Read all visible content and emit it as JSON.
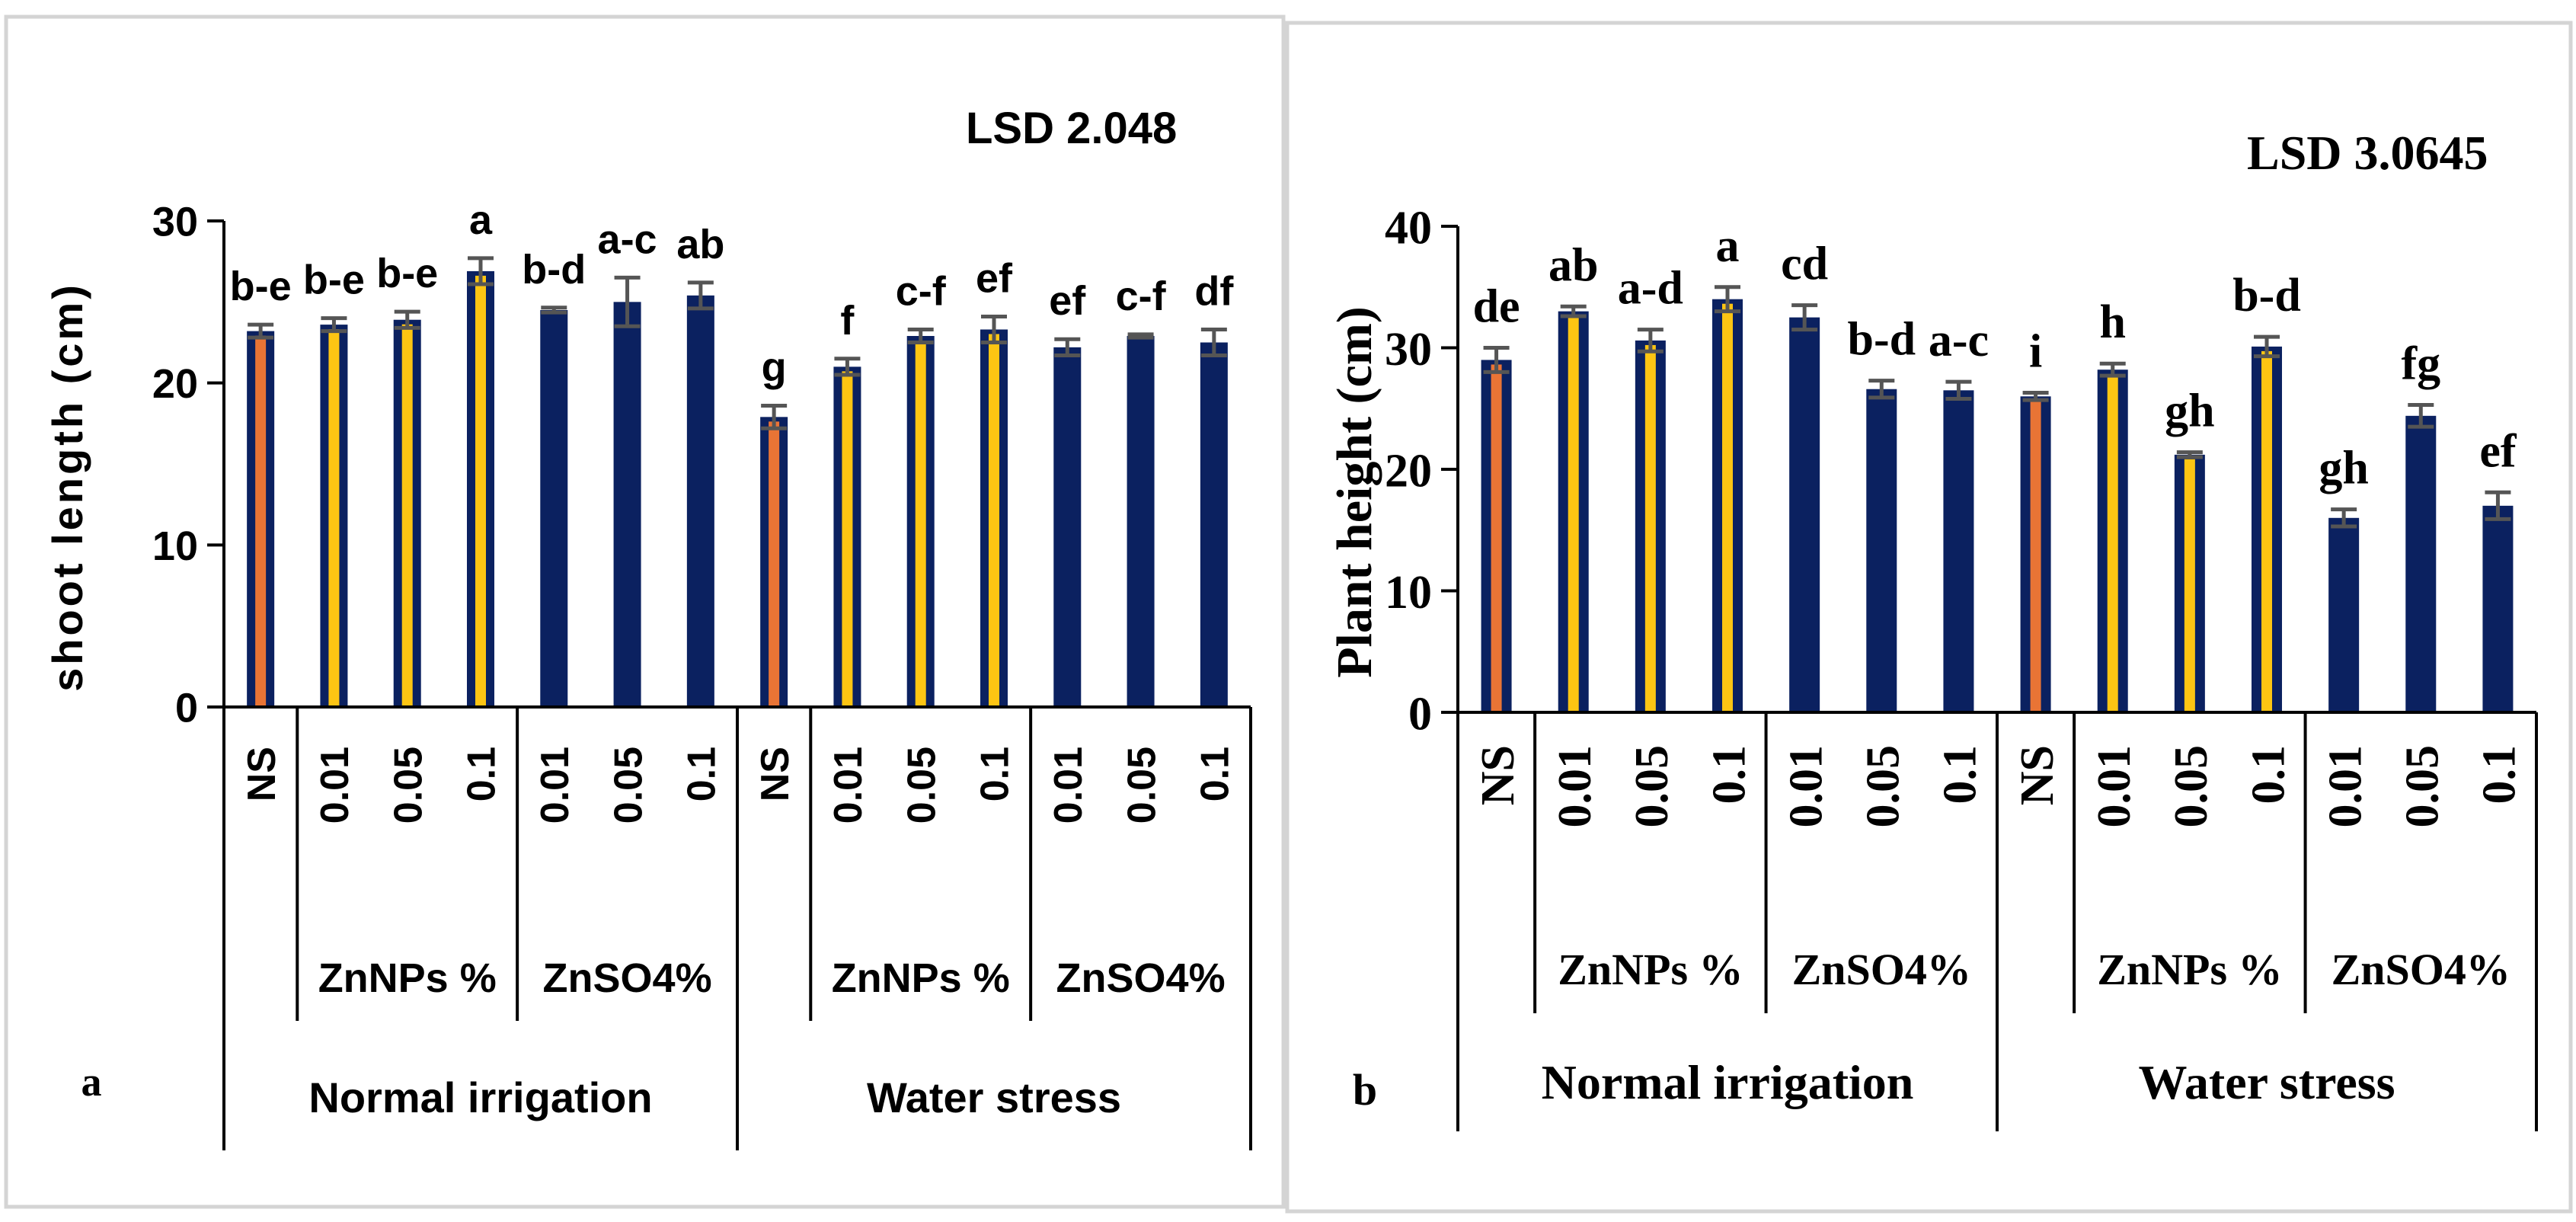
{
  "colors": {
    "navy": "#0b2160",
    "orange": "#e97435",
    "yellow": "#fdc513",
    "error_bar": "#555555",
    "frame": "#d4d4d4",
    "axis": "#000000"
  },
  "chart_data": [
    {
      "type": "bar",
      "panel_label": "a",
      "ylabel": "shoot length (cm)",
      "lsd": "LSD 2.048",
      "ylim": [
        0,
        30
      ],
      "yticks": [
        "0",
        "10",
        "20",
        "30"
      ],
      "categories": [
        "NS",
        "0.01",
        "0.05",
        "0.1",
        "0.01",
        "0.05",
        "0.1",
        "NS",
        "0.01",
        "0.05",
        "0.1",
        "0.01",
        "0.05",
        "0.1"
      ],
      "values": [
        23.2,
        23.6,
        23.9,
        26.9,
        24.5,
        25.0,
        25.4,
        17.9,
        21.0,
        22.9,
        23.3,
        22.2,
        22.9,
        22.5
      ],
      "errors": [
        0.4,
        0.4,
        0.5,
        0.8,
        0.15,
        1.5,
        0.8,
        0.7,
        0.5,
        0.4,
        0.8,
        0.5,
        0.1,
        0.8
      ],
      "letters": [
        "b-e",
        "b-e",
        "b-e",
        "a",
        "b-d",
        "a-c",
        "ab",
        "g",
        "f",
        "c-f",
        "ef",
        "ef",
        "c-f",
        "df"
      ],
      "fill_keys": [
        "orange",
        "yellow",
        "yellow",
        "yellow",
        "navy",
        "navy",
        "navy",
        "orange",
        "yellow",
        "yellow",
        "yellow",
        "navy",
        "navy",
        "navy"
      ],
      "group_labels": [
        "ZnNPs %",
        "ZnSO4%",
        "ZnNPs %",
        "ZnSO4%"
      ],
      "condition_labels": [
        "Normal irrigation",
        "Water stress"
      ]
    },
    {
      "type": "bar",
      "panel_label": "b",
      "ylabel": "Plant height (cm)",
      "lsd": "LSD 3.0645",
      "ylim": [
        0,
        40
      ],
      "yticks": [
        "0",
        "10",
        "20",
        "30",
        "40"
      ],
      "categories": [
        "NS",
        "0.01",
        "0.05",
        "0.1",
        "0.01",
        "0.05",
        "0.1",
        "NS",
        "0.01",
        "0.05",
        "0.1",
        "0.01",
        "0.05",
        "0.1"
      ],
      "values": [
        29.0,
        33.0,
        30.6,
        34.0,
        32.5,
        26.6,
        26.5,
        26.0,
        28.2,
        21.2,
        30.1,
        16.0,
        24.4,
        17.0
      ],
      "errors": [
        1.0,
        0.4,
        0.9,
        1.0,
        1.0,
        0.7,
        0.7,
        0.3,
        0.5,
        0.2,
        0.8,
        0.7,
        0.9,
        1.1
      ],
      "letters": [
        "de",
        "ab",
        "a-d",
        "a",
        "cd",
        "b-d",
        "a-c",
        "i",
        "h",
        "gh",
        "b-d",
        "gh",
        "fg",
        "ef"
      ],
      "fill_keys": [
        "orange",
        "yellow",
        "yellow",
        "yellow",
        "navy",
        "navy",
        "navy",
        "orange",
        "yellow",
        "yellow",
        "yellow",
        "navy",
        "navy",
        "navy"
      ],
      "group_labels": [
        "ZnNPs %",
        "ZnSO4%",
        "ZnNPs %",
        "ZnSO4%"
      ],
      "condition_labels": [
        "Normal irrigation",
        "Water stress"
      ]
    }
  ]
}
